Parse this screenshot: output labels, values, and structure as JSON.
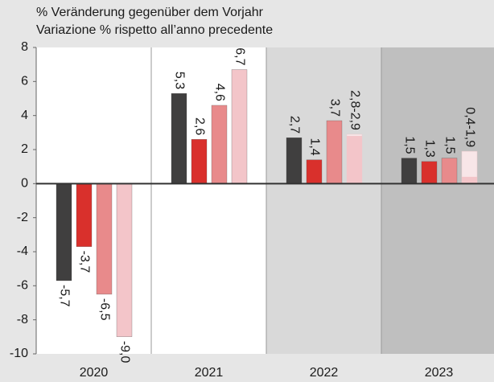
{
  "chart_data": {
    "type": "bar",
    "title_lines": [
      "% Veränderung gegenüber dem Vorjahr",
      "Variazione % rispetto all’anno precedente"
    ],
    "categories": [
      "2020",
      "2021",
      "2022",
      "2023"
    ],
    "category_backgrounds": [
      "#ffffff",
      "#ffffff",
      "#d9d9d9",
      "#bfbfbf"
    ],
    "series": [
      {
        "color": "#403f3f",
        "values": [
          -5.7,
          5.3,
          2.7,
          1.5
        ],
        "value_labels": [
          "-5,7",
          "5,3",
          "2,7",
          "1,5"
        ]
      },
      {
        "color": "#d9302c",
        "values": [
          -3.7,
          2.6,
          1.4,
          1.3
        ],
        "value_labels": [
          "-3,7",
          "2,6",
          "1,4",
          "1,3"
        ]
      },
      {
        "color": "#e88a8b",
        "values": [
          -6.5,
          4.6,
          3.7,
          1.5
        ],
        "value_labels": [
          "-6,5",
          "4,6",
          "3,7",
          "1,5"
        ]
      },
      {
        "color": "#f3c5c9",
        "range_color": "#f8e6e8",
        "values": [
          -9.0,
          6.7,
          [
            2.8,
            2.9
          ],
          [
            0.4,
            1.9
          ]
        ],
        "value_labels": [
          "-9,0",
          "6,7",
          "2,8-2,9",
          "0,4-1,9"
        ]
      }
    ],
    "ylim": [
      -10,
      8
    ],
    "yticks": [
      -10,
      -8,
      -6,
      -4,
      -2,
      0,
      2,
      4,
      6,
      8
    ],
    "grid": false
  }
}
